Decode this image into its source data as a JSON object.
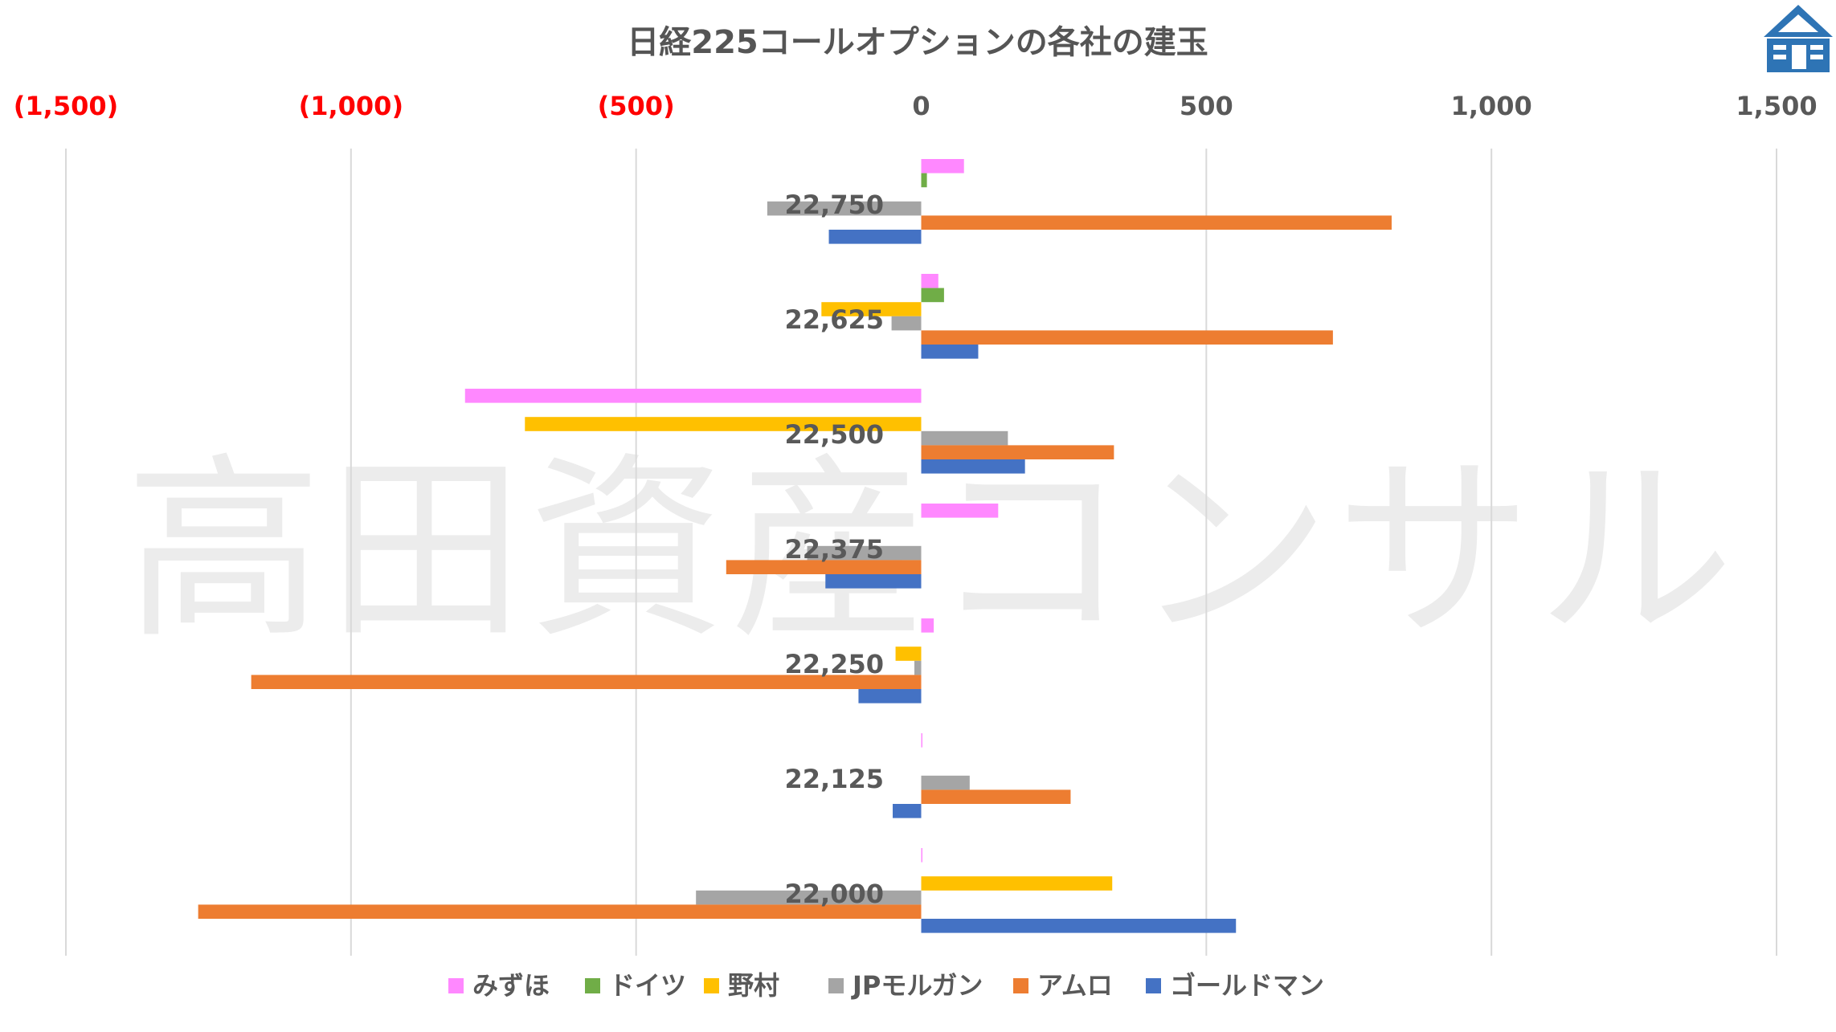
{
  "chart_data": {
    "type": "bar",
    "orientation": "horizontal",
    "title": "日経225コールオプションの各社の建玉",
    "watermark": "高田資産コンサル",
    "xlim": [
      -1500,
      1500
    ],
    "x_ticks": [
      {
        "value": -1500,
        "label": "(1,500)"
      },
      {
        "value": -1000,
        "label": "(1,000)"
      },
      {
        "value": -500,
        "label": "(500)"
      },
      {
        "value": 0,
        "label": "0"
      },
      {
        "value": 500,
        "label": "500"
      },
      {
        "value": 1000,
        "label": "1,000"
      },
      {
        "value": 1500,
        "label": "1,500"
      }
    ],
    "negative_tick_color": "#ff0000",
    "positive_tick_color": "#595959",
    "grid": "vertical",
    "legend_position": "bottom",
    "categories": [
      "22,750",
      "22,625",
      "22,500",
      "22,375",
      "22,250",
      "22,125",
      "22,000"
    ],
    "series": [
      {
        "name": "みずほ",
        "color": "#ff88ff",
        "values": [
          75,
          30,
          -800,
          135,
          22,
          2,
          2
        ]
      },
      {
        "name": "ドイツ",
        "color": "#70ad47",
        "values": [
          10,
          40,
          0,
          0,
          0,
          0,
          0
        ]
      },
      {
        "name": "野村",
        "color": "#ffc000",
        "values": [
          0,
          -175,
          -695,
          0,
          -45,
          0,
          335
        ]
      },
      {
        "name": "JPモルガン",
        "color": "#a5a5a5",
        "values": [
          -270,
          -52,
          152,
          -200,
          -12,
          85,
          -395
        ]
      },
      {
        "name": "アムロ",
        "color": "#ed7d31",
        "values": [
          825,
          722,
          338,
          -342,
          -1175,
          262,
          -1268
        ]
      },
      {
        "name": "ゴールドマン",
        "color": "#4472c4",
        "values": [
          -162,
          100,
          182,
          -168,
          -110,
          -50,
          552
        ]
      }
    ]
  },
  "logo": {
    "name": "building-logo",
    "color": "#2e74b5"
  }
}
